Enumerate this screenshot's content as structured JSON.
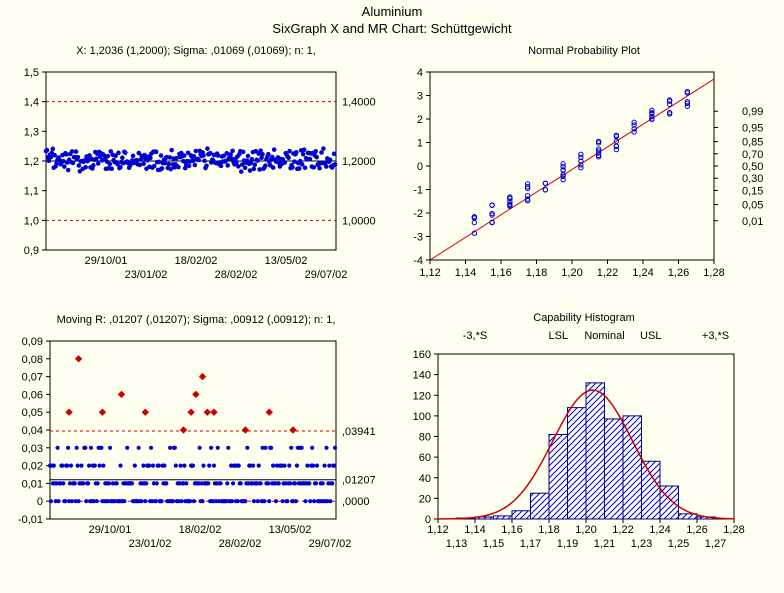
{
  "title": "Aluminium",
  "subtitle": "SixGraph X and MR Chart: Schüttgewicht",
  "colors": {
    "background": "#fffff0",
    "text": "#000000",
    "axis": "#000000",
    "refline": "#cc0000",
    "point_blue": "#0000d0",
    "point_red": "#cc0000",
    "bar_fill": "#6080e0",
    "bar_stroke": "#000080",
    "curve": "#cc0000"
  },
  "x_chart": {
    "title": "X: 1,2036 (1,2000); Sigma: ,01069 (,01069); n: 1,",
    "ylim": [
      0.9,
      1.5
    ],
    "yticks": [
      0.9,
      1.0,
      1.1,
      1.2,
      1.3,
      1.4,
      1.5
    ],
    "ytick_labels": [
      "0,9",
      "1,0",
      "1,1",
      "1,2",
      "1,3",
      "1,4",
      "1,5"
    ],
    "xtick_labels_top": [
      "29/10/01",
      "18/02/02",
      "13/05/02"
    ],
    "xtick_labels_bot": [
      "23/01/02",
      "28/02/02",
      "29/07/02"
    ],
    "ucl": 1.4,
    "ucl_label": "1,4000",
    "cl": 1.2,
    "cl_label": "1,2000",
    "lcl": 1.0,
    "lcl_label": "1,0000"
  },
  "pp_chart": {
    "title": "Normal Probability Plot",
    "ylim": [
      -4,
      4
    ],
    "yticks": [
      -4,
      -3,
      -2,
      -1,
      0,
      1,
      2,
      3,
      4
    ],
    "xlim": [
      1.12,
      1.28
    ],
    "xticks": [
      1.12,
      1.14,
      1.16,
      1.18,
      1.2,
      1.22,
      1.24,
      1.26,
      1.28
    ],
    "xtick_labels": [
      "1,12",
      "1,14",
      "1,16",
      "1,18",
      "1,20",
      "1,22",
      "1,24",
      "1,26",
      "1,28"
    ],
    "right_labels": [
      "0,01",
      "0,05",
      "0,15",
      "0,30",
      "0,50",
      "0,70",
      "0,85",
      "0,95",
      "0,99"
    ],
    "right_positions": [
      -2.33,
      -1.64,
      -1.04,
      -0.52,
      0,
      0.52,
      1.04,
      1.64,
      2.33
    ]
  },
  "mr_chart": {
    "title": "Moving R: ,01207 (,01207); Sigma: ,00912 (,00912); n: 1,",
    "ylim": [
      -0.01,
      0.09
    ],
    "yticks": [
      -0.01,
      0,
      0.01,
      0.02,
      0.03,
      0.04,
      0.05,
      0.06,
      0.07,
      0.08,
      0.09
    ],
    "ytick_labels": [
      "-0,01",
      "0",
      "0,01",
      "0,02",
      "0,03",
      "0,04",
      "0,05",
      "0,06",
      "0,07",
      "0,08",
      "0,09"
    ],
    "xtick_labels_top": [
      "29/10/01",
      "18/02/02",
      "13/05/02"
    ],
    "xtick_labels_bot": [
      "23/01/02",
      "28/02/02",
      "29/07/02"
    ],
    "ucl": 0.03941,
    "ucl_label": ",03941",
    "cl": 0.01207,
    "cl_label": ",01207",
    "lcl": 0.0,
    "lcl_label": ",0000"
  },
  "hist_chart": {
    "title": "Capability Histogram",
    "labels": {
      "m3s": "-3,*S",
      "lsl": "LSL",
      "nominal": "Nominal",
      "usl": "USL",
      "p3s": "+3,*S"
    },
    "ylim": [
      0,
      160
    ],
    "yticks": [
      0,
      20,
      40,
      60,
      80,
      100,
      120,
      140,
      160
    ],
    "xlim": [
      1.12,
      1.28
    ],
    "xticks_top": [
      1.12,
      1.14,
      1.16,
      1.18,
      1.2,
      1.22,
      1.24,
      1.26,
      1.28
    ],
    "xtick_labels_top": [
      "1,12",
      "1,14",
      "1,16",
      "1,18",
      "1,20",
      "1,22",
      "1,24",
      "1,26",
      "1,28"
    ],
    "xticks_bot": [
      1.13,
      1.15,
      1.17,
      1.19,
      1.21,
      1.23,
      1.25,
      1.27
    ],
    "xtick_labels_bot": [
      "1,13",
      "1,15",
      "1,17",
      "1,19",
      "1,21",
      "1,23",
      "1,25",
      "1,27"
    ],
    "bars": [
      {
        "x": 1.135,
        "h": 1
      },
      {
        "x": 1.145,
        "h": 2
      },
      {
        "x": 1.155,
        "h": 3
      },
      {
        "x": 1.165,
        "h": 8
      },
      {
        "x": 1.175,
        "h": 25
      },
      {
        "x": 1.185,
        "h": 82
      },
      {
        "x": 1.195,
        "h": 108
      },
      {
        "x": 1.205,
        "h": 132
      },
      {
        "x": 1.215,
        "h": 97
      },
      {
        "x": 1.225,
        "h": 100
      },
      {
        "x": 1.235,
        "h": 56
      },
      {
        "x": 1.245,
        "h": 32
      },
      {
        "x": 1.255,
        "h": 5
      },
      {
        "x": 1.265,
        "h": 2
      }
    ],
    "bar_width": 0.01,
    "curve_mean": 1.2036,
    "curve_sigma": 0.0215,
    "curve_peak": 125
  }
}
